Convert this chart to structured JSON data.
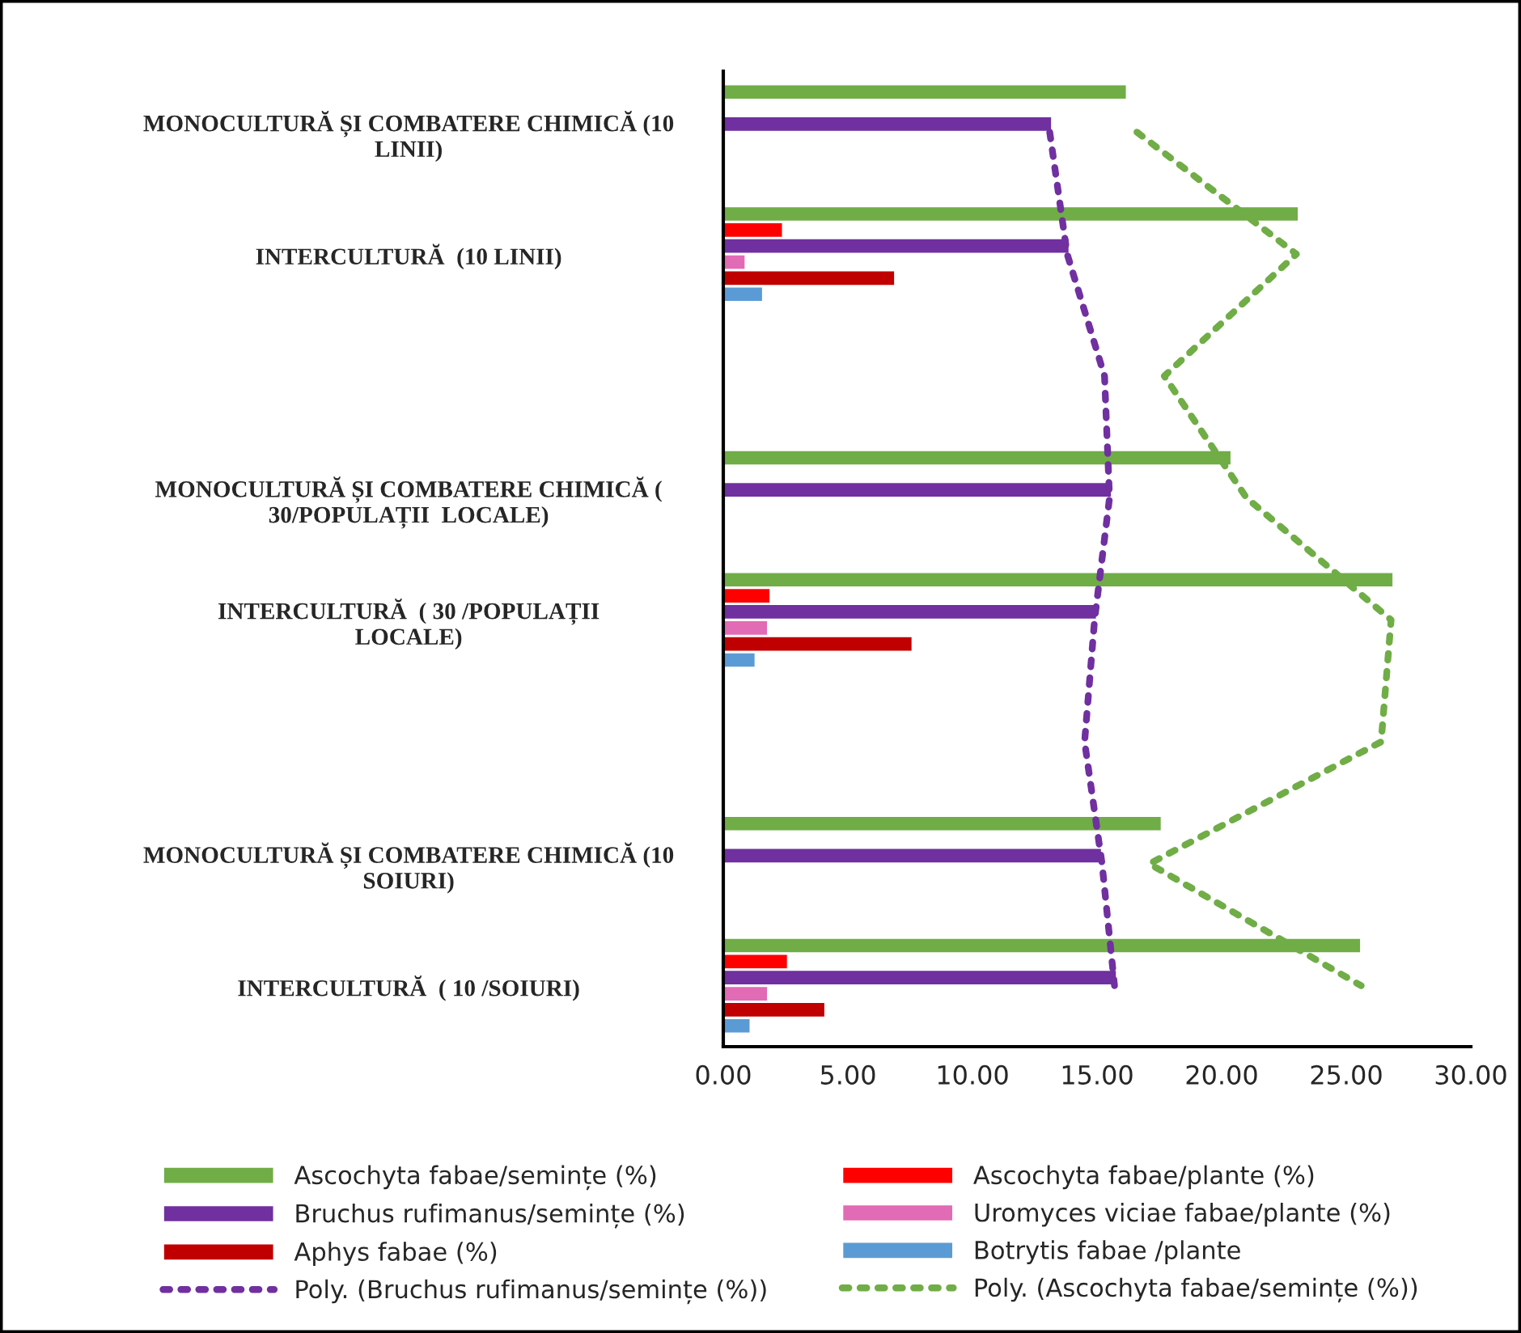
{
  "chart_data": {
    "type": "bar",
    "orientation": "horizontal",
    "categories": [
      "MONOCULTURĂ ȘI COMBATERE CHIMICĂ (10\nLINII)",
      "INTERCULTURĂ  (10 LINII)",
      null,
      "MONOCULTURĂ ȘI COMBATERE CHIMICĂ (\n30/POPULAȚII  LOCALE)",
      "INTERCULTURĂ  ( 30 /POPULAȚII\nLOCALE)",
      null,
      "MONOCULTURĂ ȘI COMBATERE CHIMICĂ (10\nSOIURI)",
      "INTERCULTURĂ  ( 10 /SOIURI)"
    ],
    "series": [
      {
        "name": "Ascochyta fabae/semințe (%)",
        "color": "#70ad47",
        "values": [
          16.2,
          23.1,
          null,
          20.4,
          26.9,
          null,
          17.6,
          25.6
        ]
      },
      {
        "name": "Ascochyta fabae/plante (%)",
        "color": "#ff0000",
        "values": [
          null,
          2.4,
          null,
          null,
          1.9,
          null,
          null,
          2.6
        ]
      },
      {
        "name": "Bruchus rufimanus/semințe (%)",
        "color": "#7030a0",
        "values": [
          13.2,
          13.9,
          null,
          15.6,
          15.0,
          null,
          15.2,
          15.8
        ]
      },
      {
        "name": "Uromyces viciae fabae/plante (%)",
        "color": "#e26bb5",
        "values": [
          null,
          0.9,
          null,
          null,
          1.8,
          null,
          null,
          1.8
        ]
      },
      {
        "name": "Aphys fabae (%)",
        "color": "#c00000",
        "values": [
          null,
          6.9,
          null,
          null,
          7.6,
          null,
          null,
          4.1
        ]
      },
      {
        "name": "Botrytis fabae /plante",
        "color": "#5b9bd5",
        "values": [
          null,
          1.6,
          null,
          null,
          1.3,
          null,
          null,
          1.1
        ]
      },
      {
        "name": "Poly. (Bruchus rufimanus/semințe (%))",
        "type": "line",
        "line_style": "dotted",
        "color": "#7030a0",
        "values": [
          13.1,
          13.8,
          15.3,
          15.5,
          14.9,
          14.5,
          15.2,
          15.7
        ]
      },
      {
        "name": "Poly. (Ascochyta fabae/semințe (%))",
        "type": "line",
        "line_style": "dotted",
        "color": "#70ad47",
        "values": [
          16.6,
          23.0,
          17.7,
          21.0,
          26.8,
          26.4,
          17.1,
          25.6
        ]
      }
    ],
    "xlim": [
      0,
      30
    ],
    "xticks": [
      {
        "value": 0,
        "label": "0.00"
      },
      {
        "value": 5,
        "label": "5.00"
      },
      {
        "value": 10,
        "label": "10.00"
      },
      {
        "value": 15,
        "label": "15.00"
      },
      {
        "value": 20,
        "label": "20.00"
      },
      {
        "value": 25,
        "label": "25.00"
      },
      {
        "value": 30,
        "label": "30.00"
      }
    ],
    "legend": "bottom"
  }
}
